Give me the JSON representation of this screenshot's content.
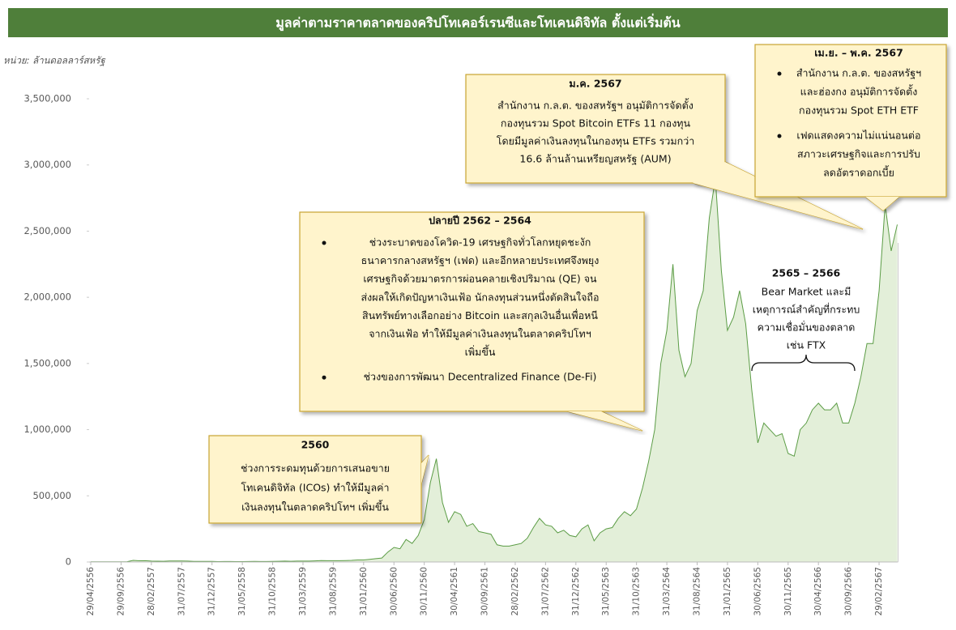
{
  "chart_data": {
    "type": "area",
    "title": "มูลค่าตามราคาตลาดของคริปโทเคอร์เรนซีและโทเคนดิจิทัล  ตั้งแต่เริ่มต้น",
    "unit_label": "หน่วย: ล้านดอลลาร์สหรัฐ",
    "color": "#5b9c45",
    "fill": "#e3efd9",
    "categories": [
      "29/04/2556",
      null,
      null,
      null,
      null,
      "29/09/2556",
      null,
      null,
      null,
      null,
      "28/02/2557",
      null,
      null,
      null,
      null,
      "31/07/2557",
      null,
      null,
      null,
      null,
      "31/12/2557",
      null,
      null,
      null,
      null,
      "31/05/2558",
      null,
      null,
      null,
      null,
      "31/10/2558",
      null,
      null,
      null,
      null,
      "31/03/2559",
      null,
      null,
      null,
      null,
      "31/08/2559",
      null,
      null,
      null,
      null,
      "31/01/2560",
      null,
      null,
      null,
      null,
      "30/06/2560",
      null,
      null,
      null,
      null,
      "30/11/2560",
      null,
      null,
      null,
      null,
      "30/04/2561",
      null,
      null,
      null,
      null,
      "30/09/2561",
      null,
      null,
      null,
      null,
      "28/02/2562",
      null,
      null,
      null,
      null,
      "31/07/2562",
      null,
      null,
      null,
      null,
      "31/12/2562",
      null,
      null,
      null,
      null,
      "31/05/2563",
      null,
      null,
      null,
      null,
      "31/10/2563",
      null,
      null,
      null,
      null,
      "31/03/2564",
      null,
      null,
      null,
      null,
      "31/08/2564",
      null,
      null,
      null,
      null,
      "31/01/2565",
      null,
      null,
      null,
      null,
      "30/06/2565",
      null,
      null,
      null,
      null,
      "30/11/2565",
      null,
      null,
      null,
      null,
      "30/04/2566",
      null,
      null,
      null,
      null,
      "30/09/2566",
      null,
      null,
      null,
      null,
      "29/02/2567",
      null,
      null,
      null
    ],
    "values": [
      1500,
      1300,
      1200,
      1100,
      1400,
      1600,
      2500,
      12000,
      9000,
      10000,
      7000,
      6000,
      5500,
      7500,
      7500,
      7500,
      6500,
      5000,
      4500,
      5000,
      4300,
      3300,
      3500,
      3500,
      3300,
      3300,
      3700,
      4200,
      3400,
      3500,
      4700,
      5500,
      6500,
      5600,
      6600,
      6500,
      7000,
      8500,
      10500,
      10000,
      9500,
      9800,
      11000,
      12000,
      15500,
      15000,
      20000,
      25000,
      30000,
      75000,
      110000,
      100000,
      170000,
      140000,
      200000,
      320000,
      600000,
      780000,
      450000,
      300000,
      380000,
      360000,
      270000,
      290000,
      230000,
      220000,
      210000,
      130000,
      120000,
      120000,
      130000,
      140000,
      180000,
      260000,
      330000,
      280000,
      270000,
      220000,
      240000,
      200000,
      190000,
      250000,
      280000,
      160000,
      220000,
      250000,
      260000,
      330000,
      380000,
      350000,
      400000,
      560000,
      760000,
      1000000,
      1500000,
      1750000,
      2250000,
      1600000,
      1400000,
      1500000,
      1900000,
      2050000,
      2600000,
      2900000,
      2200000,
      1750000,
      1850000,
      2050000,
      1800000,
      1300000,
      900000,
      1050000,
      1000000,
      950000,
      970000,
      820000,
      800000,
      1000000,
      1050000,
      1150000,
      1200000,
      1150000,
      1150000,
      1200000,
      1050000,
      1050000,
      1200000,
      1400000,
      1650000,
      1650000,
      2050000,
      2700000,
      2350000,
      2550000
    ],
    "ylim": [
      0,
      3500000
    ],
    "yticks": [
      0,
      {
        "value": 500000,
        "label": "500,000"
      },
      {
        "value": 1000000,
        "label": "1,000,000"
      },
      {
        "value": 1500000,
        "label": "1,500,000"
      },
      {
        "value": 2000000,
        "label": "2,000,000"
      },
      {
        "value": 2500000,
        "label": "2,500,000"
      },
      {
        "value": 3000000,
        "label": "3,000,000"
      },
      {
        "value": 3500000,
        "label": "3,500,000"
      }
    ],
    "grid": false,
    "annotations": [
      {
        "title": "2560",
        "boxed": true,
        "bullets": false,
        "items": [
          [
            "ช่วงการระดมทุนด้วยการเสนอขาย",
            "โทเคนดิจิทัล (ICOs) ทำให้มีมูลค่า",
            "เงินลงทุนในตลาดคริปโทฯ เพิ่มขึ้น"
          ]
        ]
      },
      {
        "title": "ปลายปี 2562 – 2564",
        "boxed": true,
        "bullets": true,
        "items": [
          [
            "ช่วงระบาดของโควิด-19 เศรษฐกิจทั่วโลกหยุดชะงัก",
            "ธนาคารกลางสหรัฐฯ (เฟด) และอีกหลายประเทศจึงพยุง",
            "เศรษฐกิจด้วยมาตรการผ่อนคลายเชิงปริมาณ (QE) จน",
            "ส่งผลให้เกิดปัญหาเงินเฟ้อ นักลงทุนส่วนหนึ่งตัดสินใจถือ",
            "สินทรัพย์ทางเลือกอย่าง Bitcoin และสกุลเงินอื่นเพื่อหนี",
            "จากเงินเฟ้อ ทำให้มีมูลค่าเงินลงทุนในตลาดคริปโทฯ",
            "เพิ่มขึ้น"
          ],
          [
            "ช่วงของการพัฒนา Decentralized Finance (De-Fi)"
          ]
        ]
      },
      {
        "title": "ม.ค. 2567",
        "boxed": true,
        "bullets": false,
        "items": [
          [
            "สำนักงาน ก.ล.ต. ของสหรัฐฯ อนุมัติการจัดตั้ง",
            "กองทุนรวม Spot Bitcoin ETFs 11 กองทุน",
            "โดยมีมูลค่าเงินลงทุนในกองทุน ETFs รวมกว่า",
            "16.6 ล้านล้านเหรียญสหรัฐ (AUM)"
          ]
        ]
      },
      {
        "title": "เม.ย. – พ.ค. 2567",
        "boxed": true,
        "bullets": true,
        "items": [
          [
            "สำนักงาน ก.ล.ต. ของสหรัฐฯ",
            "และฮ่องกง อนุมัติการจัดตั้ง",
            "กองทุนรวม Spot ETH ETF"
          ],
          [
            "เฟดแสดงความไม่แน่นอนต่อ",
            "สภาวะเศรษฐกิจและการปรับ",
            "ลดอัตราดอกเบี้ย"
          ]
        ]
      },
      {
        "title": "2565 – 2566",
        "boxed": false,
        "bullets": false,
        "items": [
          [
            "Bear Market และมี",
            "เหตุการณ์สำคัญที่กระทบ",
            "ความเชื่อมั่นของตลาด",
            "เช่น FTX"
          ]
        ]
      }
    ]
  }
}
